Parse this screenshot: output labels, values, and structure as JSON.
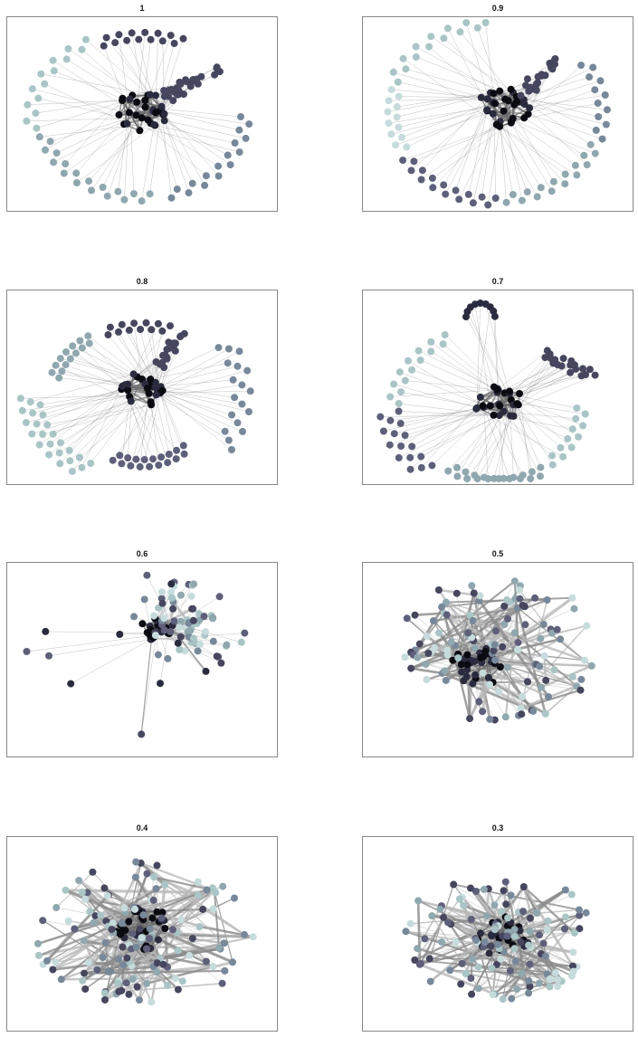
{
  "panels": [
    {
      "title": "1"
    },
    {
      "title": "0.9"
    },
    {
      "title": "0.8"
    },
    {
      "title": "0.7"
    },
    {
      "title": "0.6"
    },
    {
      "title": "0.5"
    },
    {
      "title": "0.4"
    },
    {
      "title": "0.3"
    }
  ],
  "colors": {
    "edge": "#8a8a8a",
    "edge_light": "#b8b8b8",
    "node_palette": [
      "#0b0b12",
      "#2b2b40",
      "#46465f",
      "#5e5f7a",
      "#77889a",
      "#8fa7af",
      "#a9c5c6",
      "#c6dcdc"
    ]
  }
}
